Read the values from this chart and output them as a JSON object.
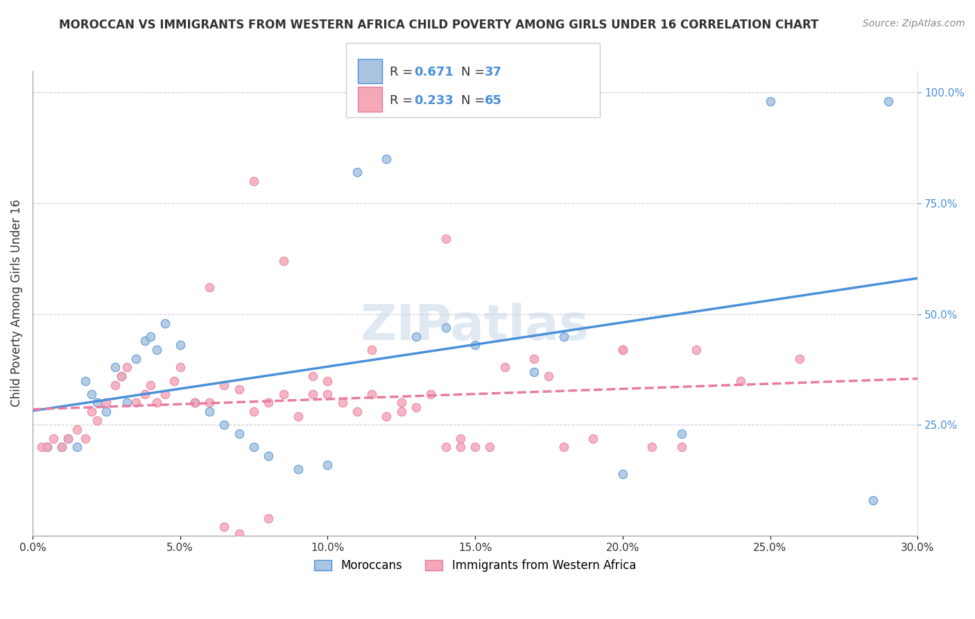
{
  "title": "MOROCCAN VS IMMIGRANTS FROM WESTERN AFRICA CHILD POVERTY AMONG GIRLS UNDER 16 CORRELATION CHART",
  "source": "Source: ZipAtlas.com",
  "ylabel": "Child Poverty Among Girls Under 16",
  "xlabel_ticks": [
    "0.0%",
    "5.0%",
    "10.0%",
    "15.0%",
    "20.0%",
    "25.0%",
    "30.0%"
  ],
  "xlabel_vals": [
    0.0,
    5.0,
    10.0,
    15.0,
    20.0,
    25.0,
    30.0
  ],
  "ylabel_right_ticks": [
    "25.0%",
    "50.0%",
    "75.0%",
    "100.0%"
  ],
  "ylabel_right_vals": [
    25.0,
    50.0,
    75.0,
    100.0
  ],
  "xmin": 0.0,
  "xmax": 30.0,
  "ymin": 0.0,
  "ymax": 105.0,
  "blue_R": 0.671,
  "blue_N": 37,
  "pink_R": 0.233,
  "pink_N": 65,
  "blue_color": "#a8c4e0",
  "pink_color": "#f4a8b8",
  "blue_line_color": "#4a90d9",
  "pink_line_color": "#e87ca0",
  "legend_label_blue": "Moroccans",
  "legend_label_pink": "Immigrants from Western Africa",
  "watermark": "ZIPatlas",
  "blue_scatter_x": [
    0.5,
    1.0,
    1.2,
    1.5,
    1.8,
    2.0,
    2.2,
    2.5,
    2.8,
    3.0,
    3.2,
    3.5,
    3.8,
    4.0,
    4.2,
    4.5,
    5.0,
    5.5,
    6.0,
    6.5,
    7.0,
    7.5,
    8.0,
    9.0,
    10.0,
    11.0,
    12.0,
    13.0,
    14.0,
    15.0,
    17.0,
    18.0,
    20.0,
    22.0,
    25.0,
    28.5,
    29.0
  ],
  "blue_scatter_y": [
    20,
    20,
    22,
    20,
    35,
    32,
    30,
    28,
    38,
    36,
    30,
    40,
    44,
    45,
    42,
    48,
    43,
    30,
    28,
    25,
    23,
    20,
    18,
    15,
    16,
    82,
    85,
    45,
    47,
    43,
    37,
    45,
    14,
    23,
    98,
    8,
    98
  ],
  "pink_scatter_x": [
    0.3,
    0.5,
    0.7,
    1.0,
    1.2,
    1.5,
    1.8,
    2.0,
    2.2,
    2.5,
    2.8,
    3.0,
    3.2,
    3.5,
    3.8,
    4.0,
    4.2,
    4.5,
    4.8,
    5.0,
    5.5,
    6.0,
    6.5,
    7.0,
    7.5,
    8.0,
    8.5,
    9.0,
    9.5,
    10.0,
    10.5,
    11.0,
    11.5,
    12.0,
    12.5,
    13.0,
    13.5,
    14.0,
    14.5,
    15.0,
    15.5,
    16.0,
    17.0,
    18.0,
    19.0,
    20.0,
    21.0,
    22.0,
    24.0,
    26.0,
    6.0,
    7.5,
    8.5,
    9.5,
    10.0,
    11.5,
    12.5,
    14.5,
    17.5,
    20.0,
    22.5,
    14.0,
    6.5,
    7.0,
    8.0
  ],
  "pink_scatter_y": [
    20,
    20,
    22,
    20,
    22,
    24,
    22,
    28,
    26,
    30,
    34,
    36,
    38,
    30,
    32,
    34,
    30,
    32,
    35,
    38,
    30,
    30,
    34,
    33,
    28,
    30,
    32,
    27,
    32,
    35,
    30,
    28,
    32,
    27,
    30,
    29,
    32,
    20,
    22,
    20,
    20,
    38,
    40,
    20,
    22,
    42,
    20,
    20,
    35,
    40,
    56,
    80,
    62,
    36,
    32,
    42,
    28,
    20,
    36,
    42,
    42,
    67,
    2,
    0.5,
    4
  ]
}
